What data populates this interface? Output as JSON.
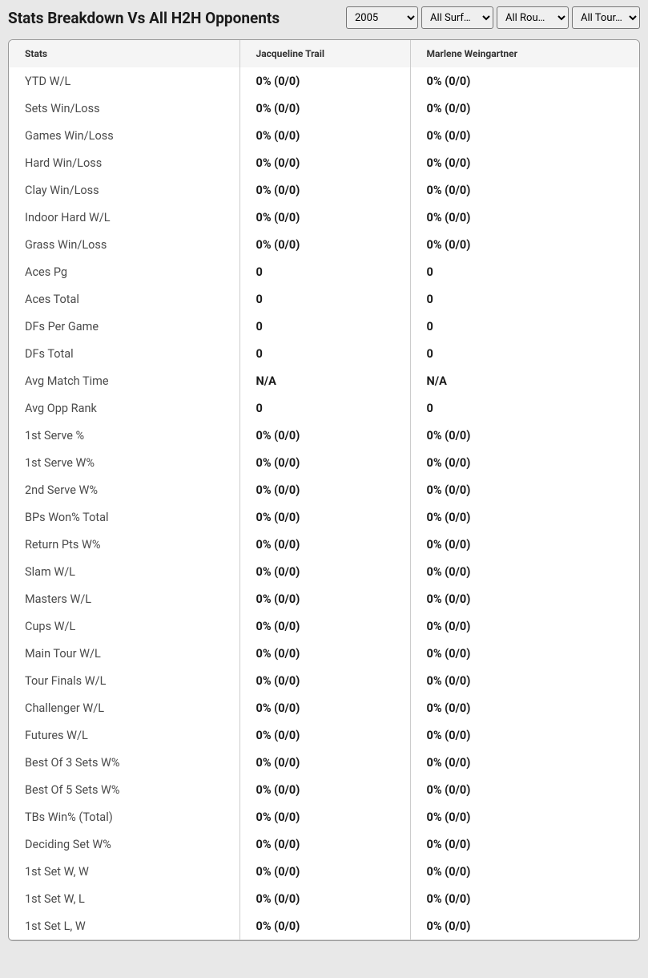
{
  "header": {
    "title": "Stats Breakdown Vs All H2H Opponents"
  },
  "filters": {
    "year": {
      "selected": "2005"
    },
    "surface": {
      "selected": "All Surf…"
    },
    "round": {
      "selected": "All Rou…"
    },
    "tour": {
      "selected": "All Tour…"
    }
  },
  "columns": {
    "stats": "Stats",
    "player1": "Jacqueline Trail",
    "player2": "Marlene Weingartner"
  },
  "rows": [
    {
      "stat": "YTD W/L",
      "p1": "0% (0/0)",
      "p2": "0% (0/0)"
    },
    {
      "stat": "Sets Win/Loss",
      "p1": "0% (0/0)",
      "p2": "0% (0/0)"
    },
    {
      "stat": "Games Win/Loss",
      "p1": "0% (0/0)",
      "p2": "0% (0/0)"
    },
    {
      "stat": "Hard Win/Loss",
      "p1": "0% (0/0)",
      "p2": "0% (0/0)"
    },
    {
      "stat": "Clay Win/Loss",
      "p1": "0% (0/0)",
      "p2": "0% (0/0)"
    },
    {
      "stat": "Indoor Hard W/L",
      "p1": "0% (0/0)",
      "p2": "0% (0/0)"
    },
    {
      "stat": "Grass Win/Loss",
      "p1": "0% (0/0)",
      "p2": "0% (0/0)"
    },
    {
      "stat": "Aces Pg",
      "p1": "0",
      "p2": "0"
    },
    {
      "stat": "Aces Total",
      "p1": "0",
      "p2": "0"
    },
    {
      "stat": "DFs Per Game",
      "p1": "0",
      "p2": "0"
    },
    {
      "stat": "DFs Total",
      "p1": "0",
      "p2": "0"
    },
    {
      "stat": "Avg Match Time",
      "p1": "N/A",
      "p2": "N/A"
    },
    {
      "stat": "Avg Opp Rank",
      "p1": "0",
      "p2": "0"
    },
    {
      "stat": "1st Serve %",
      "p1": "0% (0/0)",
      "p2": "0% (0/0)"
    },
    {
      "stat": "1st Serve W%",
      "p1": "0% (0/0)",
      "p2": "0% (0/0)"
    },
    {
      "stat": "2nd Serve W%",
      "p1": "0% (0/0)",
      "p2": "0% (0/0)"
    },
    {
      "stat": "BPs Won% Total",
      "p1": "0% (0/0)",
      "p2": "0% (0/0)"
    },
    {
      "stat": "Return Pts W%",
      "p1": "0% (0/0)",
      "p2": "0% (0/0)"
    },
    {
      "stat": "Slam W/L",
      "p1": "0% (0/0)",
      "p2": "0% (0/0)"
    },
    {
      "stat": "Masters W/L",
      "p1": "0% (0/0)",
      "p2": "0% (0/0)"
    },
    {
      "stat": "Cups W/L",
      "p1": "0% (0/0)",
      "p2": "0% (0/0)"
    },
    {
      "stat": "Main Tour W/L",
      "p1": "0% (0/0)",
      "p2": "0% (0/0)"
    },
    {
      "stat": "Tour Finals W/L",
      "p1": "0% (0/0)",
      "p2": "0% (0/0)"
    },
    {
      "stat": "Challenger W/L",
      "p1": "0% (0/0)",
      "p2": "0% (0/0)"
    },
    {
      "stat": "Futures W/L",
      "p1": "0% (0/0)",
      "p2": "0% (0/0)"
    },
    {
      "stat": "Best Of 3 Sets W%",
      "p1": "0% (0/0)",
      "p2": "0% (0/0)"
    },
    {
      "stat": "Best Of 5 Sets W%",
      "p1": "0% (0/0)",
      "p2": "0% (0/0)"
    },
    {
      "stat": "TBs Win% (Total)",
      "p1": "0% (0/0)",
      "p2": "0% (0/0)"
    },
    {
      "stat": "Deciding Set W%",
      "p1": "0% (0/0)",
      "p2": "0% (0/0)"
    },
    {
      "stat": "1st Set W, W",
      "p1": "0% (0/0)",
      "p2": "0% (0/0)"
    },
    {
      "stat": "1st Set W, L",
      "p1": "0% (0/0)",
      "p2": "0% (0/0)"
    },
    {
      "stat": "1st Set L, W",
      "p1": "0% (0/0)",
      "p2": "0% (0/0)"
    }
  ],
  "styling": {
    "background_color": "#e8e8e8",
    "table_background": "#ffffff",
    "table_border": "#999999",
    "header_row_background": "#f5f5f5",
    "cell_border": "#cccccc",
    "title_fontsize": 19,
    "header_fontsize": 12,
    "cell_fontsize": 14.5,
    "stat_label_color": "#4a4a4a",
    "value_color": "#1a1a1a"
  }
}
